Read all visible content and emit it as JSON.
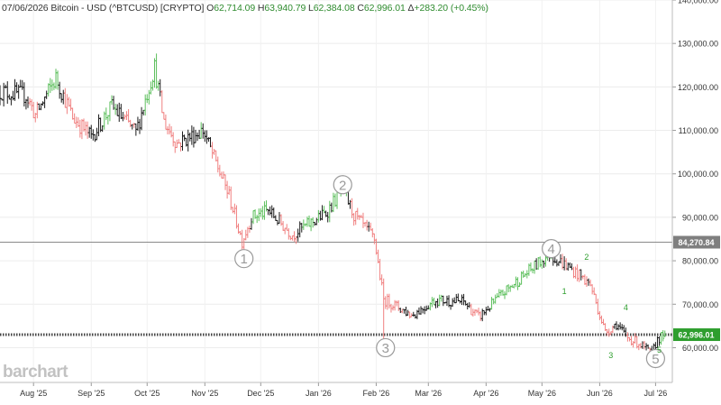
{
  "header": {
    "date": "07/06/2026",
    "instrument": "Bitcoin - USD (^BTCUSD) [CRYPTO]",
    "open_label": "O",
    "open": "62,714.09",
    "high_label": "H",
    "high": "63,940.79",
    "low_label": "L",
    "low": "62,384.08",
    "close_label": "C",
    "close": "62,996.01",
    "change_label": "Δ",
    "change": "+283.20 (+0.45%)"
  },
  "watermark": "barchart",
  "colors": {
    "up": "#5cbf5c",
    "down": "#f08080",
    "neutral": "#1a1a1a",
    "last_price_badge": "#2e9e2e",
    "level_badge": "#7f7f7f",
    "wave_circle": "#9a9a9a",
    "sub_wave": "#2e9e2e"
  },
  "chart_data": {
    "type": "candlestick",
    "title": "",
    "xlabel": "",
    "ylabel": "",
    "ylim": [
      52000,
      140000
    ],
    "x_ticks": [
      "Aug '25",
      "Sep '25",
      "Oct '25",
      "Nov '25",
      "Dec '25",
      "Jan '26",
      "Feb '26",
      "Mar '26",
      "Apr '26",
      "May '26",
      "Jun '26",
      "Jul '26"
    ],
    "y_ticks": [
      {
        "value": 60000,
        "label": "60,000.00"
      },
      {
        "value": 70000,
        "label": "70,000.00"
      },
      {
        "value": 80000,
        "label": "80,000.00"
      },
      {
        "value": 90000,
        "label": "90,000.00"
      },
      {
        "value": 100000,
        "label": "100,000.00"
      },
      {
        "value": 110000,
        "label": "110,000.00"
      },
      {
        "value": 120000,
        "label": "120,000.00"
      },
      {
        "value": 130000,
        "label": "130,000.00"
      },
      {
        "value": 140000,
        "label": "140,000.00"
      }
    ],
    "horizontal_levels": [
      {
        "value": 84270.84,
        "label": "84,270.84",
        "style": "solid"
      },
      {
        "value": 62996.01,
        "label": "62,996.01",
        "style": "dotted"
      }
    ],
    "wave_labels": [
      {
        "text": "1",
        "date": "2025-11-22",
        "price": 80500
      },
      {
        "text": "2",
        "date": "2026-01-14",
        "price": 97500
      },
      {
        "text": "3",
        "date": "2026-02-06",
        "price": 60000
      },
      {
        "text": "4",
        "date": "2026-05-06",
        "price": 82800
      },
      {
        "text": "5",
        "date": "2026-07-01",
        "price": 57500
      }
    ],
    "sub_wave_labels": [
      {
        "text": "1",
        "date": "2026-05-13",
        "price": 73000
      },
      {
        "text": "2",
        "date": "2026-05-25",
        "price": 80800
      },
      {
        "text": "3",
        "date": "2026-06-07",
        "price": 58200
      },
      {
        "text": "4",
        "date": "2026-06-15",
        "price": 69200
      },
      {
        "text": "5",
        "date": "2026-07-03",
        "price": 59500
      }
    ],
    "anchors": [
      {
        "date": "2025-07-14",
        "price": 119000
      },
      {
        "date": "2025-07-28",
        "price": 118000
      },
      {
        "date": "2025-08-02",
        "price": 113500
      },
      {
        "date": "2025-08-13",
        "price": 122000
      },
      {
        "date": "2025-08-22",
        "price": 113000
      },
      {
        "date": "2025-09-01",
        "price": 108500
      },
      {
        "date": "2025-09-12",
        "price": 115500
      },
      {
        "date": "2025-09-25",
        "price": 109500
      },
      {
        "date": "2025-10-05",
        "price": 124500
      },
      {
        "date": "2025-10-10",
        "price": 112000
      },
      {
        "date": "2025-10-17",
        "price": 107000
      },
      {
        "date": "2025-10-31",
        "price": 110000
      },
      {
        "date": "2025-11-14",
        "price": 95000
      },
      {
        "date": "2025-11-21",
        "price": 84500
      },
      {
        "date": "2025-11-26",
        "price": 90000
      },
      {
        "date": "2025-12-05",
        "price": 91500
      },
      {
        "date": "2025-12-18",
        "price": 86000
      },
      {
        "date": "2026-01-05",
        "price": 91000
      },
      {
        "date": "2026-01-14",
        "price": 96500
      },
      {
        "date": "2026-01-20",
        "price": 90500
      },
      {
        "date": "2026-01-31",
        "price": 85000
      },
      {
        "date": "2026-02-05",
        "price": 71000
      },
      {
        "date": "2026-02-08",
        "price": 70500
      },
      {
        "date": "2026-02-20",
        "price": 67500
      },
      {
        "date": "2026-03-05",
        "price": 71000
      },
      {
        "date": "2026-03-20",
        "price": 70500
      },
      {
        "date": "2026-03-28",
        "price": 67000
      },
      {
        "date": "2026-04-10",
        "price": 72500
      },
      {
        "date": "2026-04-25",
        "price": 78000
      },
      {
        "date": "2026-05-05",
        "price": 81500
      },
      {
        "date": "2026-05-12",
        "price": 79500
      },
      {
        "date": "2026-05-20",
        "price": 77000
      },
      {
        "date": "2026-05-27",
        "price": 74500
      },
      {
        "date": "2026-06-04",
        "price": 63500
      },
      {
        "date": "2026-06-10",
        "price": 65500
      },
      {
        "date": "2026-06-15",
        "price": 62500
      },
      {
        "date": "2026-06-22",
        "price": 61000
      },
      {
        "date": "2026-06-29",
        "price": 58500
      },
      {
        "date": "2026-07-02",
        "price": 62000
      },
      {
        "date": "2026-07-06",
        "price": 62996
      }
    ],
    "last": {
      "date": "2026-07-06",
      "open": 62714.09,
      "high": 63940.79,
      "low": 62384.08,
      "close": 62996.01
    }
  }
}
